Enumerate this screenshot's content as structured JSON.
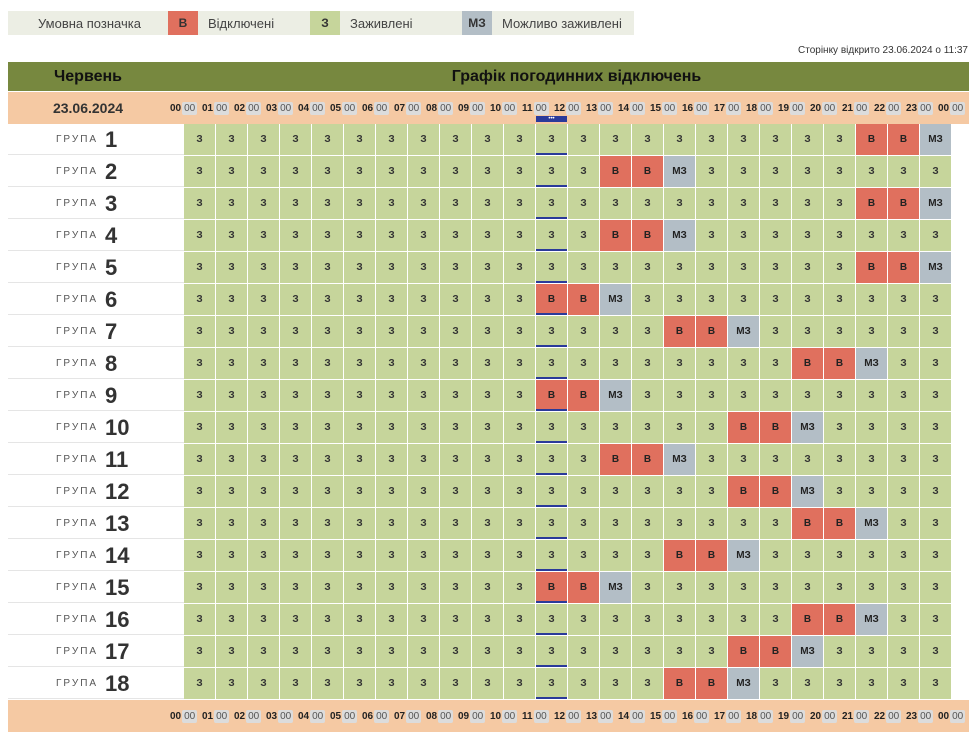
{
  "legend": {
    "title": "Умовна позначка",
    "items": [
      {
        "code": "В",
        "label": "Відключені",
        "color": "#e0705e"
      },
      {
        "code": "З",
        "label": "Заживлені",
        "color": "#c6d59b"
      },
      {
        "code": "МЗ",
        "label": "Можливо заживлені",
        "color": "#b3bec6"
      }
    ]
  },
  "opened_text": "Сторінку відкрито 23.06.2024 о 11:37",
  "header": {
    "month": "Червень",
    "title": "Графік погодинних відключень"
  },
  "date": "23.06.2024",
  "group_word": "ГРУПА",
  "hours": [
    "00",
    "01",
    "02",
    "03",
    "04",
    "05",
    "06",
    "07",
    "08",
    "09",
    "10",
    "11",
    "12",
    "13",
    "14",
    "15",
    "16",
    "17",
    "18",
    "19",
    "20",
    "21",
    "22",
    "23",
    "00"
  ],
  "minutes": "00",
  "now_marker": "•••",
  "codes": {
    "z": "З",
    "b": "В",
    "mz": "МЗ"
  },
  "groups": [
    {
      "num": "1",
      "cells": [
        "z",
        "z",
        "z",
        "z",
        "z",
        "z",
        "z",
        "z",
        "z",
        "z",
        "z",
        "z",
        "z",
        "z",
        "z",
        "z",
        "z",
        "z",
        "z",
        "z",
        "z",
        "b",
        "b",
        "mz"
      ]
    },
    {
      "num": "2",
      "cells": [
        "z",
        "z",
        "z",
        "z",
        "z",
        "z",
        "z",
        "z",
        "z",
        "z",
        "z",
        "z",
        "z",
        "b",
        "b",
        "mz",
        "z",
        "z",
        "z",
        "z",
        "z",
        "z",
        "z",
        "z"
      ]
    },
    {
      "num": "3",
      "cells": [
        "z",
        "z",
        "z",
        "z",
        "z",
        "z",
        "z",
        "z",
        "z",
        "z",
        "z",
        "z",
        "z",
        "z",
        "z",
        "z",
        "z",
        "z",
        "z",
        "z",
        "z",
        "b",
        "b",
        "mz"
      ]
    },
    {
      "num": "4",
      "cells": [
        "z",
        "z",
        "z",
        "z",
        "z",
        "z",
        "z",
        "z",
        "z",
        "z",
        "z",
        "z",
        "z",
        "b",
        "b",
        "mz",
        "z",
        "z",
        "z",
        "z",
        "z",
        "z",
        "z",
        "z"
      ]
    },
    {
      "num": "5",
      "cells": [
        "z",
        "z",
        "z",
        "z",
        "z",
        "z",
        "z",
        "z",
        "z",
        "z",
        "z",
        "z",
        "z",
        "z",
        "z",
        "z",
        "z",
        "z",
        "z",
        "z",
        "z",
        "b",
        "b",
        "mz"
      ]
    },
    {
      "num": "6",
      "cells": [
        "z",
        "z",
        "z",
        "z",
        "z",
        "z",
        "z",
        "z",
        "z",
        "z",
        "z",
        "b",
        "b",
        "mz",
        "z",
        "z",
        "z",
        "z",
        "z",
        "z",
        "z",
        "z",
        "z",
        "z"
      ]
    },
    {
      "num": "7",
      "cells": [
        "z",
        "z",
        "z",
        "z",
        "z",
        "z",
        "z",
        "z",
        "z",
        "z",
        "z",
        "z",
        "z",
        "z",
        "z",
        "b",
        "b",
        "mz",
        "z",
        "z",
        "z",
        "z",
        "z",
        "z"
      ]
    },
    {
      "num": "8",
      "cells": [
        "z",
        "z",
        "z",
        "z",
        "z",
        "z",
        "z",
        "z",
        "z",
        "z",
        "z",
        "z",
        "z",
        "z",
        "z",
        "z",
        "z",
        "z",
        "z",
        "b",
        "b",
        "mz",
        "z",
        "z"
      ]
    },
    {
      "num": "9",
      "cells": [
        "z",
        "z",
        "z",
        "z",
        "z",
        "z",
        "z",
        "z",
        "z",
        "z",
        "z",
        "b",
        "b",
        "mz",
        "z",
        "z",
        "z",
        "z",
        "z",
        "z",
        "z",
        "z",
        "z",
        "z"
      ]
    },
    {
      "num": "10",
      "cells": [
        "z",
        "z",
        "z",
        "z",
        "z",
        "z",
        "z",
        "z",
        "z",
        "z",
        "z",
        "z",
        "z",
        "z",
        "z",
        "z",
        "z",
        "b",
        "b",
        "mz",
        "z",
        "z",
        "z",
        "z"
      ]
    },
    {
      "num": "11",
      "cells": [
        "z",
        "z",
        "z",
        "z",
        "z",
        "z",
        "z",
        "z",
        "z",
        "z",
        "z",
        "z",
        "z",
        "b",
        "b",
        "mz",
        "z",
        "z",
        "z",
        "z",
        "z",
        "z",
        "z",
        "z"
      ]
    },
    {
      "num": "12",
      "cells": [
        "z",
        "z",
        "z",
        "z",
        "z",
        "z",
        "z",
        "z",
        "z",
        "z",
        "z",
        "z",
        "z",
        "z",
        "z",
        "z",
        "z",
        "b",
        "b",
        "mz",
        "z",
        "z",
        "z",
        "z"
      ]
    },
    {
      "num": "13",
      "cells": [
        "z",
        "z",
        "z",
        "z",
        "z",
        "z",
        "z",
        "z",
        "z",
        "z",
        "z",
        "z",
        "z",
        "z",
        "z",
        "z",
        "z",
        "z",
        "z",
        "b",
        "b",
        "mz",
        "z",
        "z"
      ]
    },
    {
      "num": "14",
      "cells": [
        "z",
        "z",
        "z",
        "z",
        "z",
        "z",
        "z",
        "z",
        "z",
        "z",
        "z",
        "z",
        "z",
        "z",
        "z",
        "b",
        "b",
        "mz",
        "z",
        "z",
        "z",
        "z",
        "z",
        "z"
      ]
    },
    {
      "num": "15",
      "cells": [
        "z",
        "z",
        "z",
        "z",
        "z",
        "z",
        "z",
        "z",
        "z",
        "z",
        "z",
        "b",
        "b",
        "mz",
        "z",
        "z",
        "z",
        "z",
        "z",
        "z",
        "z",
        "z",
        "z",
        "z"
      ]
    },
    {
      "num": "16",
      "cells": [
        "z",
        "z",
        "z",
        "z",
        "z",
        "z",
        "z",
        "z",
        "z",
        "z",
        "z",
        "z",
        "z",
        "z",
        "z",
        "z",
        "z",
        "z",
        "z",
        "b",
        "b",
        "mz",
        "z",
        "z"
      ]
    },
    {
      "num": "17",
      "cells": [
        "z",
        "z",
        "z",
        "z",
        "z",
        "z",
        "z",
        "z",
        "z",
        "z",
        "z",
        "z",
        "z",
        "z",
        "z",
        "z",
        "z",
        "b",
        "b",
        "mz",
        "z",
        "z",
        "z",
        "z"
      ]
    },
    {
      "num": "18",
      "cells": [
        "z",
        "z",
        "z",
        "z",
        "z",
        "z",
        "z",
        "z",
        "z",
        "z",
        "z",
        "z",
        "z",
        "z",
        "z",
        "b",
        "b",
        "mz",
        "z",
        "z",
        "z",
        "z",
        "z",
        "z"
      ]
    }
  ]
}
